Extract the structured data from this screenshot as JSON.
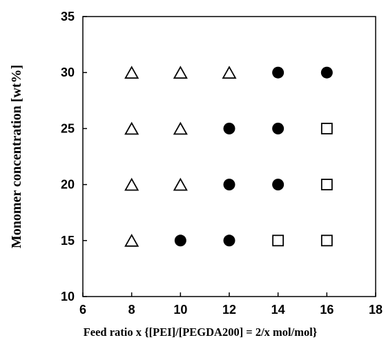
{
  "chart_data": {
    "type": "scatter",
    "xlabel": "Feed ratio x {[PEI]/[PEGDA200] = 2/x mol/mol}",
    "ylabel": "Monomer concentration  [wt%]",
    "xlim": [
      6,
      18
    ],
    "ylim": [
      10,
      35
    ],
    "xticks": [
      "6",
      "8",
      "10",
      "12",
      "14",
      "16",
      "18"
    ],
    "yticks": [
      "10",
      "15",
      "20",
      "25",
      "30",
      "35"
    ],
    "grid": false,
    "series": [
      {
        "marker": "open-triangle",
        "color": "#000000",
        "points": [
          {
            "x": 8,
            "y": 15
          },
          {
            "x": 8,
            "y": 20
          },
          {
            "x": 8,
            "y": 25
          },
          {
            "x": 8,
            "y": 30
          },
          {
            "x": 10,
            "y": 20
          },
          {
            "x": 10,
            "y": 25
          },
          {
            "x": 10,
            "y": 30
          },
          {
            "x": 12,
            "y": 30
          }
        ]
      },
      {
        "marker": "filled-circle",
        "color": "#000000",
        "points": [
          {
            "x": 10,
            "y": 15
          },
          {
            "x": 12,
            "y": 15
          },
          {
            "x": 12,
            "y": 20
          },
          {
            "x": 12,
            "y": 25
          },
          {
            "x": 14,
            "y": 20
          },
          {
            "x": 14,
            "y": 25
          },
          {
            "x": 14,
            "y": 30
          },
          {
            "x": 16,
            "y": 30
          }
        ]
      },
      {
        "marker": "open-square",
        "color": "#000000",
        "points": [
          {
            "x": 14,
            "y": 15
          },
          {
            "x": 16,
            "y": 15
          },
          {
            "x": 16,
            "y": 20
          },
          {
            "x": 16,
            "y": 25
          }
        ]
      }
    ]
  }
}
